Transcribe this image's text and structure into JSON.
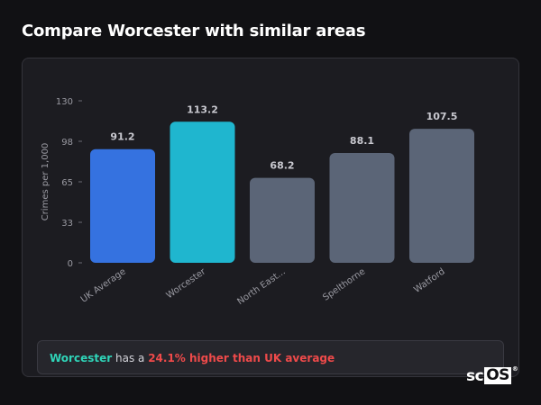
{
  "page": {
    "title": "Compare Worcester with similar areas"
  },
  "summary": {
    "city": "Worcester",
    "middle": " has a ",
    "difference": "24.1% higher than UK average"
  },
  "logo": {
    "text_left": "sc",
    "text_boxed": "OS",
    "mark": "®"
  },
  "colors": {
    "uk_average": "#3572e0",
    "focus_area": "#1fb6cf",
    "other_area": "#5b6577",
    "axis_text": "#9a9aa2",
    "value_label": "#c9c9d0",
    "summary_city": "#2fd4b8",
    "summary_diff": "#ef4a4a"
  },
  "chart_data": {
    "type": "bar",
    "title": "",
    "ylabel": "Crimes per 1,000",
    "xlabel": "",
    "categories": [
      "UK Average",
      "Worcester",
      "North East...",
      "Spelthorne",
      "Watford"
    ],
    "values": [
      91.2,
      113.2,
      68.2,
      88.1,
      107.5
    ],
    "value_labels": [
      "91.2",
      "113.2",
      "68.2",
      "88.1",
      "107.5"
    ],
    "bar_roles": [
      "uk_average",
      "focus_area",
      "other_area",
      "other_area",
      "other_area"
    ],
    "yticks": [
      "0",
      "33",
      "65",
      "98",
      "130"
    ],
    "ytick_values": [
      0,
      32.5,
      65,
      97.5,
      130
    ],
    "ylim": [
      0,
      130
    ],
    "grid": false,
    "legend": "none"
  }
}
